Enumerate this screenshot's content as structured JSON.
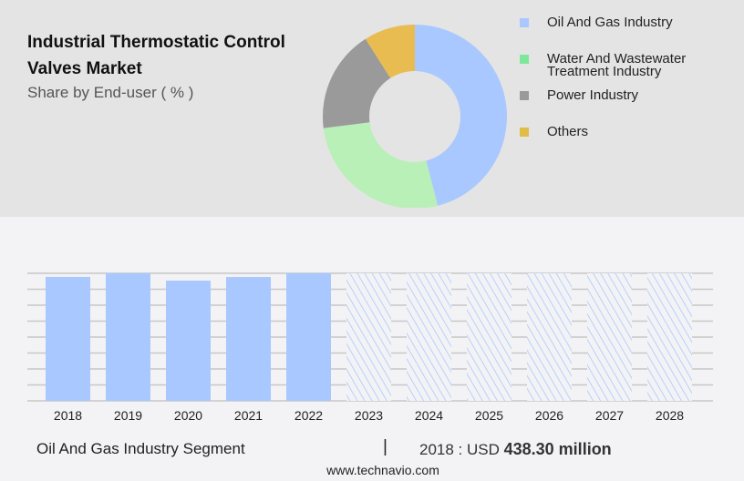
{
  "title": "Industrial Thermostatic Control Valves Market",
  "subtitle": "Share by End-user ( % )",
  "footer": {
    "segment": "Oil And Gas Industry Segment",
    "separator": "|",
    "year_label": "2018 : USD",
    "value": "438.30 million",
    "site": "www.technavio.com"
  },
  "chart_data": [
    {
      "type": "pie",
      "donut": true,
      "title": "Share by End-user ( % )",
      "labels": [
        "Oil And Gas Industry",
        "Water And Wastewater Treatment Industry",
        "Power Industry",
        "Others"
      ],
      "values": [
        46,
        27,
        18,
        9
      ],
      "colors": [
        "#a8c8ff",
        "#b8f0b8",
        "#9a9a9a",
        "#e8bc50"
      ],
      "legend_colors": [
        "#a8c8ff",
        "#7ee89a",
        "#9a9a9a",
        "#e0bc48"
      ],
      "legend": "right"
    },
    {
      "type": "bar",
      "categories": [
        "2018",
        "2019",
        "2020",
        "2021",
        "2022",
        "2023",
        "2024",
        "2025",
        "2026",
        "2027",
        "2028"
      ],
      "values": [
        438.3,
        451,
        425,
        438,
        451,
        451,
        451,
        451,
        451,
        451,
        451
      ],
      "forecast_from": "2023",
      "ylim": [
        0,
        451
      ],
      "grid": true,
      "color": "#a8c8ff"
    }
  ]
}
